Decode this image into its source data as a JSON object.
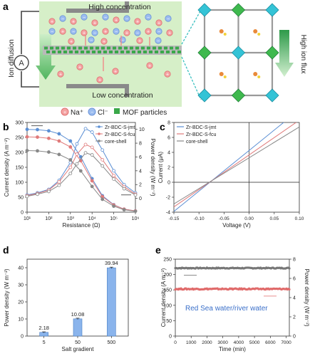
{
  "panels": {
    "a": {
      "letter": "a",
      "high_label": "High concentration",
      "low_label": "Low concentration",
      "ion_diffusion": "Ion diffusion",
      "high_ion_flux": "High ion flux",
      "ammeter": "A",
      "legend": {
        "na": "Na⁺",
        "cl": "Cl⁻",
        "mof": "MOF particles"
      },
      "colors": {
        "na": "#f08a8a",
        "cl": "#7fa8e8",
        "mof": "#3aa84a",
        "box": "#d6efc8",
        "arrow": "#8fd09a"
      }
    },
    "b": {
      "letter": "b"
    },
    "c": {
      "letter": "c"
    },
    "d": {
      "letter": "d"
    },
    "e": {
      "letter": "e",
      "annotation": "Red Sea water/river water"
    }
  },
  "chart_data": [
    {
      "panel": "b",
      "type": "line",
      "xlabel": "Resistance (Ω)",
      "ylabel": "Current density (A m⁻²)",
      "ylabel_right": "Power density (W m⁻²)",
      "x_scale": "log",
      "xlim": [
        10,
        1000000
      ],
      "x_ticks": [
        10,
        100,
        1000,
        10000,
        100000,
        1000000
      ],
      "x_tick_labels": [
        "10¹",
        "10²",
        "10³",
        "10⁴",
        "10⁵",
        "10⁶"
      ],
      "ylim": [
        0,
        300
      ],
      "y_ticks": [
        0,
        50,
        100,
        150,
        200,
        250,
        300
      ],
      "ylim_right": [
        -2,
        11
      ],
      "y_ticks_right": [
        0,
        2,
        4,
        6,
        8,
        10
      ],
      "legend_position": "top-right",
      "series": [
        {
          "name": "Zr-BDC-S-jmt",
          "color": "#5b8fd4",
          "axis": "left",
          "x": [
            10,
            30,
            100,
            300,
            1000,
            3000,
            10000,
            30000,
            100000,
            300000,
            1000000
          ],
          "y": [
            277,
            276,
            272,
            262,
            238,
            185,
            112,
            55,
            25,
            10,
            4
          ]
        },
        {
          "name": "Zr-BDC-S-jmt",
          "color": "#5b8fd4",
          "axis": "right",
          "x": [
            10,
            30,
            100,
            300,
            1000,
            2000,
            5000,
            10000,
            30000,
            100000,
            300000,
            1000000
          ],
          "y": [
            0.5,
            0.8,
            1.3,
            2.6,
            5.2,
            7.9,
            10.1,
            9.6,
            7.0,
            4.0,
            2.0,
            0.8
          ]
        },
        {
          "name": "Zr-BDC-S-fcu",
          "color": "#e07a7a",
          "axis": "left",
          "x": [
            10,
            30,
            100,
            300,
            1000,
            3000,
            10000,
            30000,
            100000,
            300000,
            1000000
          ],
          "y": [
            252,
            251,
            247,
            238,
            218,
            172,
            105,
            52,
            24,
            10,
            4
          ]
        },
        {
          "name": "Zr-BDC-S-fcu",
          "color": "#e07a7a",
          "axis": "right",
          "x": [
            10,
            30,
            100,
            300,
            1000,
            2000,
            5000,
            10000,
            30000,
            100000,
            300000,
            1000000
          ],
          "y": [
            0.4,
            0.7,
            1.2,
            2.4,
            4.5,
            6.4,
            7.8,
            7.4,
            5.6,
            3.3,
            1.7,
            0.6
          ]
        },
        {
          "name": "core-shell",
          "color": "#888888",
          "axis": "left",
          "x": [
            10,
            30,
            100,
            300,
            1000,
            3000,
            10000,
            30000,
            100000,
            300000,
            1000000
          ],
          "y": [
            206,
            205,
            201,
            193,
            175,
            138,
            86,
            43,
            20,
            8,
            3
          ]
        },
        {
          "name": "core-shell",
          "color": "#888888",
          "axis": "right",
          "x": [
            10,
            30,
            100,
            300,
            1000,
            2000,
            5000,
            10000,
            30000,
            100000,
            300000,
            1000000
          ],
          "y": [
            0.3,
            0.6,
            1.0,
            1.9,
            3.6,
            5.0,
            6.6,
            6.3,
            4.7,
            2.8,
            1.4,
            0.5
          ]
        }
      ]
    },
    {
      "panel": "c",
      "type": "line",
      "xlabel": "Voltage (V)",
      "ylabel": "Current (μA)",
      "xlim": [
        -0.15,
        0.1
      ],
      "x_ticks": [
        -0.15,
        -0.1,
        -0.05,
        0,
        0.05,
        0.1
      ],
      "x_tick_labels": [
        "-0.15",
        "-0.10",
        "-0.05",
        "0.00",
        "0.05",
        "0.10"
      ],
      "ylim": [
        -4,
        8
      ],
      "y_ticks": [
        -4,
        -2,
        0,
        2,
        4,
        6,
        8
      ],
      "legend_position": "top-left",
      "series": [
        {
          "name": "Zr-BDC-S-jmt",
          "color": "#5b8fd4",
          "x": [
            -0.15,
            0.1
          ],
          "y": [
            -3.9,
            9.7
          ]
        },
        {
          "name": "Zr-BDC-S-fcu",
          "color": "#e07a7a",
          "x": [
            -0.15,
            0.1
          ],
          "y": [
            -3.3,
            8.3
          ]
        },
        {
          "name": "core-shell",
          "color": "#888888",
          "x": [
            -0.15,
            0.1
          ],
          "y": [
            -2.9,
            7.4
          ]
        }
      ]
    },
    {
      "panel": "d",
      "type": "bar",
      "xlabel": "Salt gradient",
      "ylabel": "Power density (W m⁻²)",
      "categories": [
        "5",
        "50",
        "500"
      ],
      "values": [
        2.18,
        10.08,
        39.94
      ],
      "value_labels": [
        "2.18",
        "10.08",
        "39.94"
      ],
      "errors": [
        0.3,
        0.4,
        0.4
      ],
      "ylim": [
        0,
        45
      ],
      "y_ticks": [
        0,
        10,
        20,
        30,
        40
      ],
      "color": "#8ab4ec"
    },
    {
      "panel": "e",
      "type": "scatter",
      "xlabel": "Time (min)",
      "ylabel": "Current density (A m⁻²)",
      "ylabel_right": "Power density (W m⁻²)",
      "xlim": [
        0,
        7200
      ],
      "x_ticks": [
        0,
        1000,
        2000,
        3000,
        4000,
        5000,
        6000,
        7000
      ],
      "ylim": [
        0,
        250
      ],
      "y_ticks": [
        0,
        50,
        100,
        150,
        200,
        250
      ],
      "ylim_right": [
        0,
        8
      ],
      "y_ticks_right": [
        0,
        2,
        4,
        6,
        8
      ],
      "series": [
        {
          "name": "",
          "color": "#777777",
          "axis": "left",
          "mean": 221,
          "noise": 1.5,
          "x_range": [
            0,
            7200
          ]
        },
        {
          "name": "",
          "color": "#e06a6a",
          "axis": "right",
          "mean": 4.9,
          "noise": 0.06,
          "x_range": [
            0,
            7200
          ]
        }
      ]
    }
  ]
}
